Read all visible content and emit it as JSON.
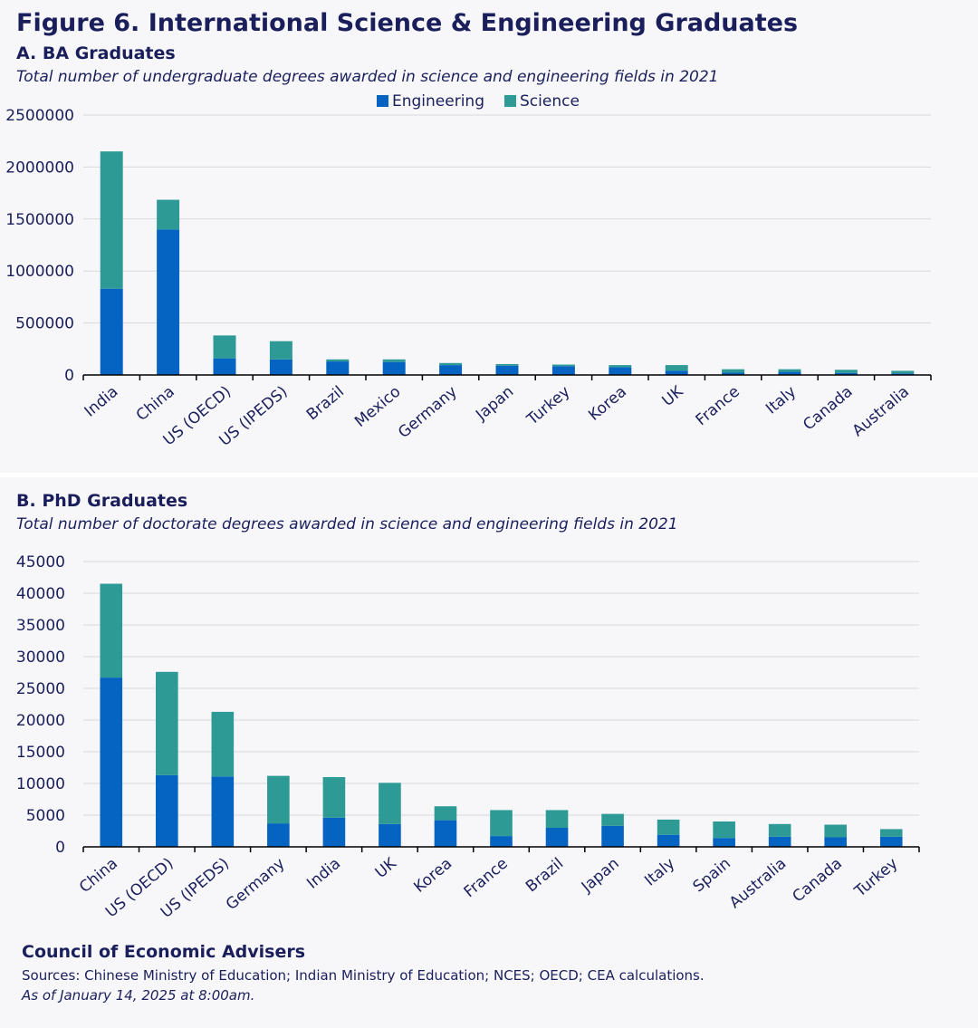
{
  "figure_title": "Figure 6. International Science & Engineering Graduates",
  "footer": {
    "organization": "Council of Economic Advisers",
    "sources": "Sources: Chinese Ministry of Education; Indian Ministry of Education; NCES; OECD; CEA calculations.",
    "as_of": "As of January 14, 2025 at 8:00am."
  },
  "colors": {
    "engineering": "#0563c1",
    "science": "#2e9a96",
    "grid": "#d9d9d9",
    "text": "#1a1f5c"
  },
  "chart_data": [
    {
      "type": "bar",
      "stacked": true,
      "title": "A. BA Graduates",
      "subtitle": "Total number of undergraduate degrees awarded in science and engineering fields in 2021",
      "legend": [
        "Engineering",
        "Science"
      ],
      "legend_position": "top-center",
      "grid": true,
      "ylim": [
        0,
        2500000
      ],
      "yticks": [
        "0",
        "500000",
        "1000000",
        "1500000",
        "2000000",
        "2500000"
      ],
      "categories": [
        "India",
        "China",
        "US (OECD)",
        "US (IPEDS)",
        "Brazil",
        "Mexico",
        "Germany",
        "Japan",
        "Turkey",
        "Korea",
        "UK",
        "France",
        "Italy",
        "Canada",
        "Australia"
      ],
      "series": [
        {
          "name": "Engineering",
          "values": [
            830000,
            1400000,
            160000,
            150000,
            130000,
            125000,
            95000,
            90000,
            85000,
            75000,
            40000,
            22000,
            30000,
            20000,
            15000
          ]
        },
        {
          "name": "Science",
          "values": [
            1320000,
            285000,
            220000,
            175000,
            20000,
            25000,
            20000,
            15000,
            15000,
            20000,
            55000,
            33000,
            25000,
            30000,
            25000
          ]
        }
      ]
    },
    {
      "type": "bar",
      "stacked": true,
      "title": "B. PhD Graduates",
      "subtitle": "Total number of doctorate degrees awarded in science and engineering fields in 2021",
      "grid": true,
      "ylim": [
        0,
        45000
      ],
      "yticks": [
        "0",
        "5000",
        "10000",
        "15000",
        "20000",
        "25000",
        "30000",
        "35000",
        "40000",
        "45000"
      ],
      "categories": [
        "China",
        "US (OECD)",
        "US (IPEDS)",
        "Germany",
        "India",
        "UK",
        "Korea",
        "France",
        "Brazil",
        "Japan",
        "Italy",
        "Spain",
        "Australia",
        "Canada",
        "Turkey"
      ],
      "series": [
        {
          "name": "Engineering",
          "values": [
            26700,
            11300,
            11100,
            3700,
            4600,
            3600,
            4200,
            1700,
            3000,
            3300,
            1900,
            1400,
            1600,
            1500,
            1600
          ]
        },
        {
          "name": "Science",
          "values": [
            14800,
            16300,
            10200,
            7500,
            6400,
            6500,
            2200,
            4100,
            2800,
            1900,
            2400,
            2600,
            2000,
            2000,
            1200
          ]
        }
      ]
    }
  ]
}
